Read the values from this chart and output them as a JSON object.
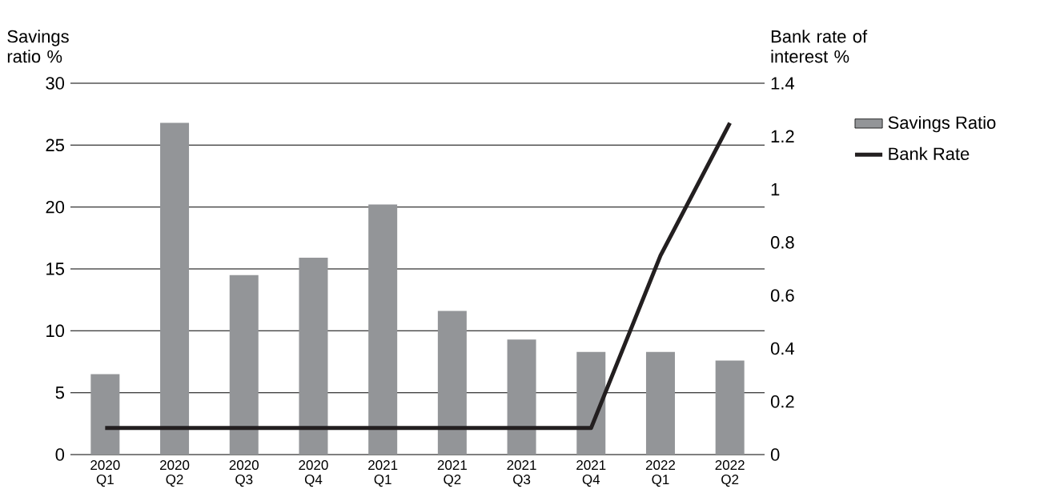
{
  "chart_data": {
    "type": "bar",
    "categories": [
      "2020 Q1",
      "2020 Q2",
      "2020 Q3",
      "2020 Q4",
      "2021 Q1",
      "2021 Q2",
      "2021 Q3",
      "2021 Q4",
      "2022 Q1",
      "2022 Q2"
    ],
    "series": [
      {
        "name": "Savings Ratio",
        "color": "#939598",
        "values": [
          6.5,
          26.8,
          14.5,
          15.9,
          20.2,
          11.6,
          9.3,
          8.3,
          8.3,
          7.6
        ]
      },
      {
        "name": "Bank Rate",
        "type": "line",
        "axis": "y2",
        "color": "#231f20",
        "values": [
          0.1,
          0.1,
          0.1,
          0.1,
          0.1,
          0.1,
          0.1,
          0.1,
          0.75,
          1.25
        ]
      }
    ],
    "ylabel": "Savings ratio %",
    "y2label": "Bank rate of interest %",
    "ylim": [
      0,
      30
    ],
    "yticks": [
      0,
      5,
      10,
      15,
      20,
      25,
      30
    ],
    "y2lim": [
      0,
      1.4
    ],
    "y2ticks": [
      0,
      0.2,
      0.4,
      0.6,
      0.8,
      1,
      1.2,
      1.4
    ],
    "grid": "y",
    "legend": "top right"
  }
}
